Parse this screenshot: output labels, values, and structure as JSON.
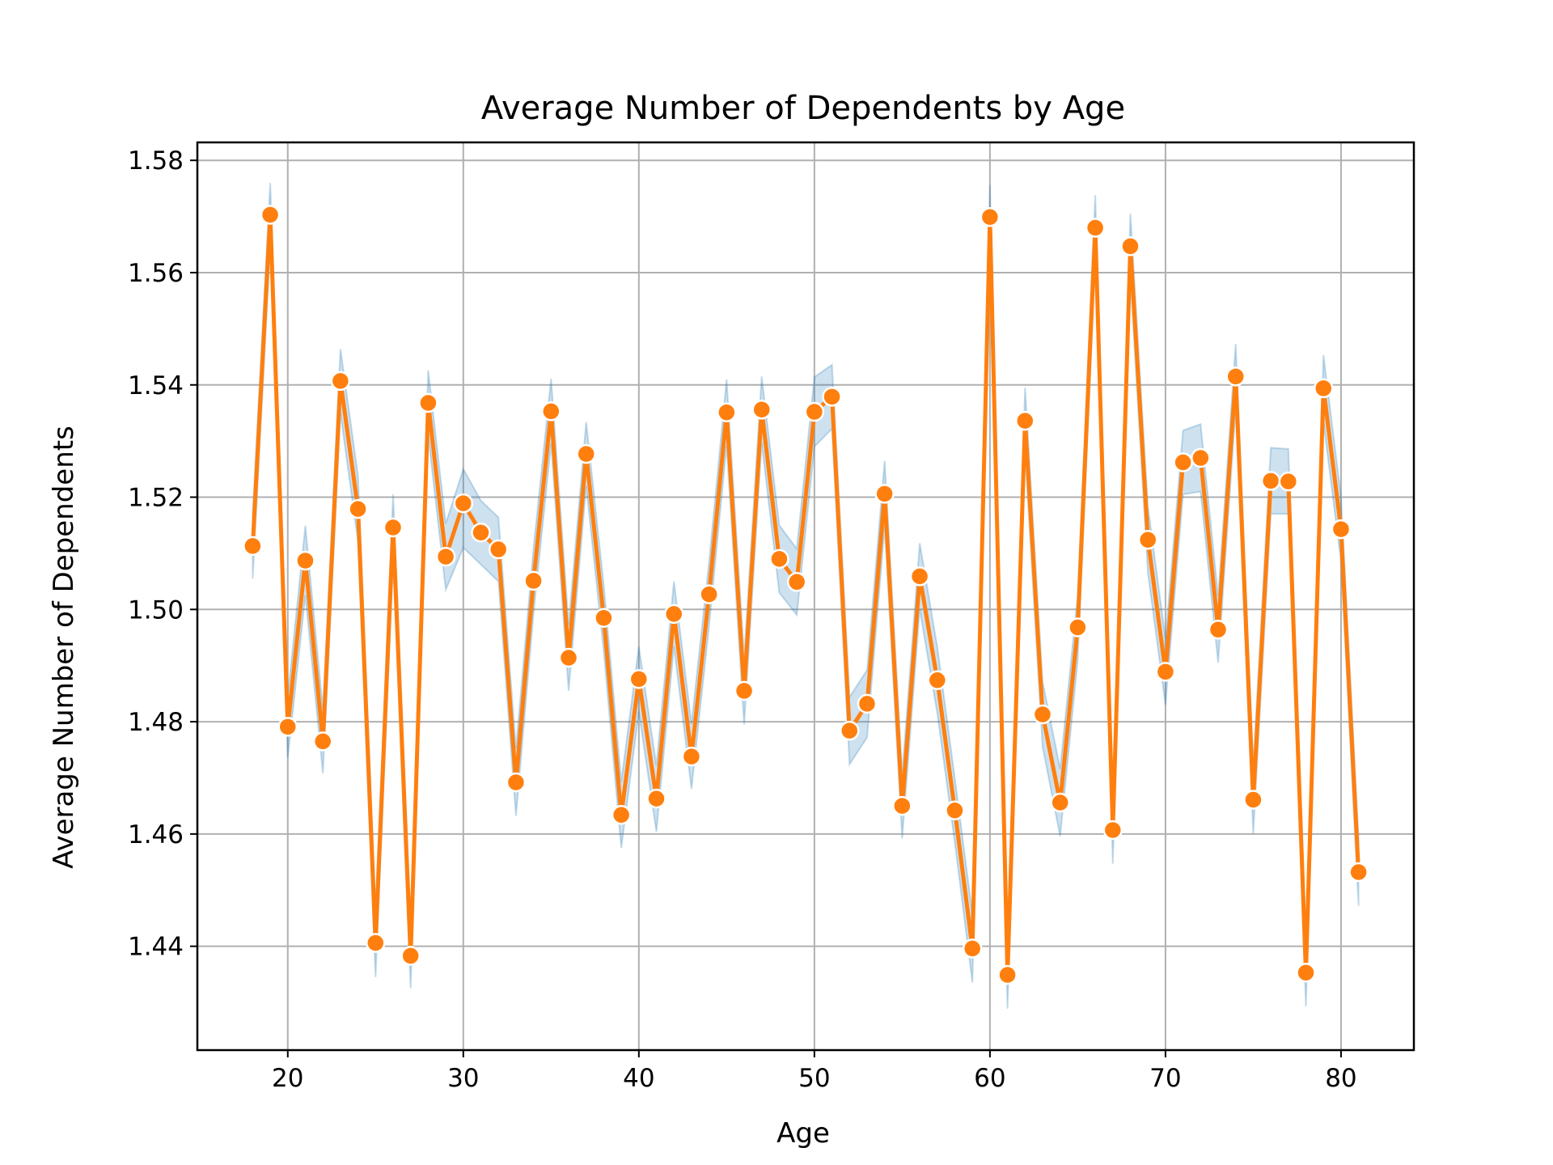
{
  "chart_data": {
    "type": "line",
    "title": "Average Number of Dependents by Age",
    "xlabel": "Age",
    "ylabel": "Average Number of Dependents",
    "xlim": [
      14.85,
      84.15
    ],
    "ylim": [
      1.4215,
      1.5832
    ],
    "x_ticks": [
      20,
      30,
      40,
      50,
      60,
      70,
      80
    ],
    "x_tick_labels": [
      "20",
      "30",
      "40",
      "50",
      "60",
      "70",
      "80"
    ],
    "y_ticks": [
      1.44,
      1.46,
      1.48,
      1.5,
      1.52,
      1.54,
      1.56,
      1.58
    ],
    "y_tick_labels": [
      "1.44",
      "1.46",
      "1.48",
      "1.50",
      "1.52",
      "1.54",
      "1.56",
      "1.58"
    ],
    "grid": true,
    "legend": "none",
    "colors": {
      "line": "#ff7f0e",
      "band": "#1f77b4",
      "marker_edge": "#ffffff",
      "grid": "#b0b0b0"
    },
    "series": [
      {
        "x": [
          18,
          19,
          20,
          21,
          22,
          23,
          24,
          25,
          26,
          27,
          28,
          29,
          30,
          31,
          32,
          33,
          34,
          35,
          36,
          37,
          38,
          39,
          40,
          41,
          42,
          43,
          44,
          45,
          46,
          47,
          48,
          49,
          50,
          51,
          52,
          53,
          54,
          55,
          56,
          57,
          58,
          59,
          60,
          61,
          62,
          63,
          64,
          65,
          66,
          67,
          68,
          69,
          70,
          71,
          72,
          73,
          74,
          75,
          76,
          77,
          78,
          79,
          80,
          81
        ],
        "values": [
          1.5113,
          1.5703,
          1.4791,
          1.5087,
          1.4765,
          1.5407,
          1.5179,
          1.4406,
          1.5146,
          1.4383,
          1.5368,
          1.5094,
          1.5189,
          1.5137,
          1.5107,
          1.4692,
          1.5051,
          1.5353,
          1.4914,
          1.5277,
          1.4985,
          1.4634,
          1.4876,
          1.4663,
          1.4992,
          1.4738,
          1.5027,
          1.5351,
          1.4855,
          1.5356,
          1.509,
          1.5049,
          1.5352,
          1.5379,
          1.4784,
          1.4832,
          1.5206,
          1.465,
          1.5059,
          1.4874,
          1.4642,
          1.4396,
          1.5699,
          1.4349,
          1.5336,
          1.4813,
          1.4656,
          1.4968,
          1.568,
          1.4607,
          1.5647,
          1.5124,
          1.4889,
          1.5262,
          1.527,
          1.4964,
          1.5415,
          1.4661,
          1.5229,
          1.5228,
          1.4353,
          1.5394,
          1.5143,
          1.4532
        ],
        "ci_lower": [
          1.5055,
          1.5646,
          1.4736,
          1.5025,
          1.4708,
          1.535,
          1.512,
          1.4345,
          1.5087,
          1.4325,
          1.531,
          1.5035,
          1.511,
          1.508,
          1.505,
          1.4632,
          1.4993,
          1.5295,
          1.4855,
          1.522,
          1.4926,
          1.4575,
          1.4818,
          1.4604,
          1.4934,
          1.468,
          1.497,
          1.5292,
          1.4795,
          1.5297,
          1.503,
          1.499,
          1.529,
          1.5322,
          1.4724,
          1.4772,
          1.5147,
          1.4592,
          1.5,
          1.4815,
          1.4585,
          1.4335,
          1.5642,
          1.4289,
          1.5277,
          1.4755,
          1.4596,
          1.491,
          1.5622,
          1.4547,
          1.5589,
          1.5065,
          1.483,
          1.5205,
          1.521,
          1.4905,
          1.5357,
          1.46,
          1.517,
          1.517,
          1.4293,
          1.5335,
          1.5085,
          1.4472
        ],
        "ci_upper": [
          1.5171,
          1.576,
          1.4846,
          1.5149,
          1.4822,
          1.5464,
          1.5238,
          1.4467,
          1.5205,
          1.4441,
          1.5426,
          1.5153,
          1.525,
          1.5194,
          1.5164,
          1.4752,
          1.5109,
          1.5411,
          1.4973,
          1.5334,
          1.5044,
          1.4693,
          1.4934,
          1.4722,
          1.505,
          1.4796,
          1.5084,
          1.541,
          1.4915,
          1.5415,
          1.515,
          1.5108,
          1.5414,
          1.5436,
          1.4844,
          1.4892,
          1.5265,
          1.4708,
          1.5118,
          1.4933,
          1.4699,
          1.4457,
          1.5756,
          1.4409,
          1.5395,
          1.4871,
          1.4716,
          1.5026,
          1.5738,
          1.4667,
          1.5705,
          1.5183,
          1.4948,
          1.5319,
          1.533,
          1.5023,
          1.5473,
          1.4722,
          1.5288,
          1.5286,
          1.4413,
          1.5453,
          1.5201,
          1.4592
        ]
      }
    ]
  }
}
